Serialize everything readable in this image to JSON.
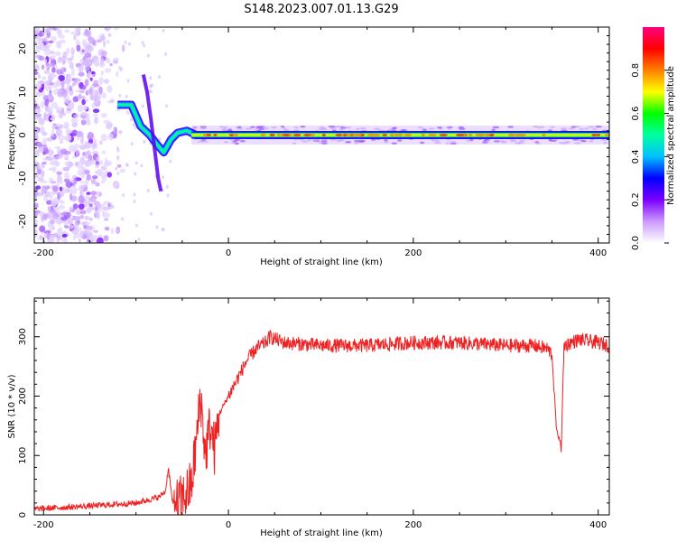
{
  "figure": {
    "title": "S148.2023.007.01.13.G29"
  },
  "chart_data": [
    {
      "type": "heatmap",
      "name": "spectrogram",
      "xlabel": "Height of straight line (km)",
      "ylabel": "Frequency (Hz)",
      "xlim": [
        -210,
        412
      ],
      "ylim": [
        -25,
        25
      ],
      "xticks": [
        -200,
        0,
        200,
        400
      ],
      "yticks": [
        -20,
        -10,
        0,
        10,
        20
      ],
      "colorbar": {
        "label": "Normalized spectral amplitude",
        "range": [
          0,
          1
        ],
        "ticks": [
          0.0,
          0.2,
          0.4,
          0.6,
          0.8
        ],
        "colors": [
          "#ffffff",
          "#cc99ff",
          "#7a00ff",
          "#0000ff",
          "#00c0ff",
          "#00ffa0",
          "#00ff00",
          "#ffff00",
          "#ff8000",
          "#ff0000",
          "#ff0080"
        ]
      },
      "features": {
        "noise_region_x": [
          -210,
          -120
        ],
        "ridge": [
          {
            "x": -120,
            "f": 7
          },
          {
            "x": -105,
            "f": 7
          },
          {
            "x": -95,
            "f": 2
          },
          {
            "x": -85,
            "f": 0
          },
          {
            "x": -78,
            "f": -2
          },
          {
            "x": -70,
            "f": -4
          },
          {
            "x": -62,
            "f": -1
          },
          {
            "x": -55,
            "f": 0.5
          },
          {
            "x": -45,
            "f": 1
          },
          {
            "x": -35,
            "f": 0
          },
          {
            "x": 412,
            "f": 0
          }
        ],
        "dc_line_x": [
          -40,
          412
        ]
      }
    },
    {
      "type": "line",
      "name": "snr",
      "xlabel": "Height of straight line (km)",
      "ylabel": "SNR (10 * v/v)",
      "xlim": [
        -210,
        412
      ],
      "ylim": [
        0,
        365
      ],
      "xticks": [
        -200,
        0,
        200,
        400
      ],
      "yticks": [
        0,
        100,
        200,
        300
      ],
      "color": "#ee2222",
      "series": [
        {
          "x": [
            -210,
            -150,
            -100,
            -75,
            -68,
            -65,
            -60,
            -50,
            -40,
            -35,
            -30,
            -25,
            -20,
            -15,
            -10,
            0,
            10,
            20,
            30,
            40,
            45,
            60,
            100,
            150,
            200,
            250,
            300,
            330,
            345,
            350,
            352,
            355,
            358,
            360,
            363,
            370,
            380,
            400,
            412
          ],
          "y": [
            10,
            15,
            20,
            30,
            40,
            80,
            15,
            25,
            50,
            120,
            200,
            100,
            150,
            110,
            170,
            200,
            230,
            260,
            280,
            290,
            300,
            290,
            285,
            285,
            290,
            290,
            285,
            285,
            280,
            270,
            220,
            140,
            130,
            110,
            285,
            290,
            295,
            290,
            285
          ]
        }
      ]
    }
  ]
}
